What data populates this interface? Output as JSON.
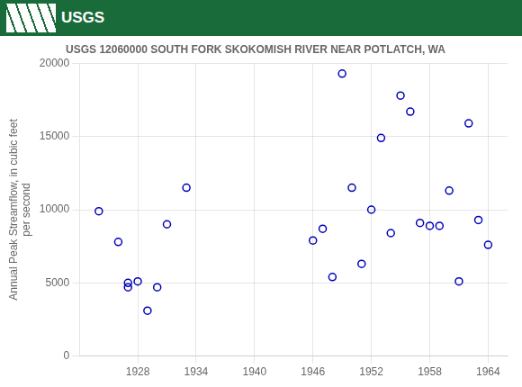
{
  "chart_data": {
    "type": "scatter",
    "title": "USGS 12060000 SOUTH FORK SKOKOMISH RIVER NEAR POTLATCH, WA",
    "ylabel": "Annual Peak Streamflow, in cubic feet\nper second",
    "annotations": [
      "USGS"
    ],
    "x": [
      1924,
      1926,
      1927,
      1927,
      1928,
      1929,
      1930,
      1931,
      1933,
      1946,
      1947,
      1948,
      1949,
      1950,
      1951,
      1952,
      1953,
      1954,
      1955,
      1956,
      1957,
      1958,
      1959,
      1960,
      1961,
      1962,
      1963,
      1964
    ],
    "values": [
      9900,
      7800,
      4700,
      5000,
      5100,
      3100,
      4700,
      9000,
      11500,
      7900,
      8700,
      5400,
      19300,
      11500,
      6300,
      10000,
      14900,
      8400,
      17800,
      16700,
      9100,
      8900,
      8900,
      11300,
      5100,
      15900,
      9300,
      7600
    ],
    "color": "#0000BB",
    "marker": "circle",
    "xlim": [
      1922,
      1966
    ],
    "ylim": [
      0,
      20000
    ],
    "xticks": [
      1928,
      1934,
      1940,
      1946,
      1952,
      1958,
      1964
    ],
    "yticks": [
      0,
      5000,
      10000,
      15000,
      20000
    ],
    "grid": true
  }
}
